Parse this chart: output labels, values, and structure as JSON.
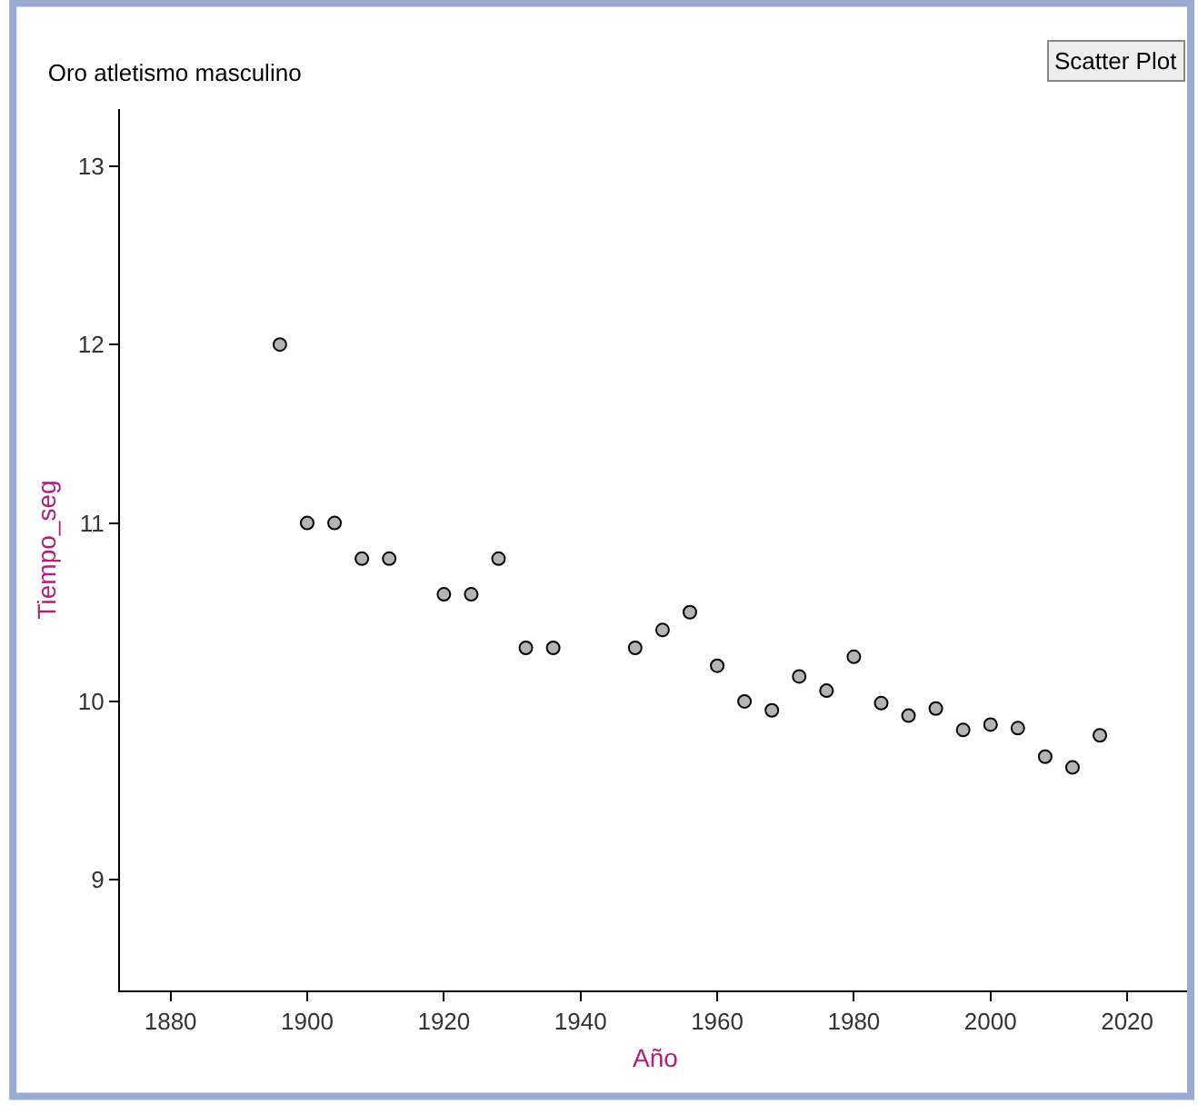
{
  "chart_data": {
    "type": "scatter",
    "title": "Oro atletismo masculino",
    "xlabel": "Año",
    "ylabel": "Tiempo_seg",
    "annotations": [
      "Scatter Plot"
    ],
    "x": [
      1896,
      1900,
      1904,
      1908,
      1912,
      1920,
      1924,
      1928,
      1932,
      1936,
      1948,
      1952,
      1956,
      1960,
      1964,
      1968,
      1972,
      1976,
      1980,
      1984,
      1988,
      1992,
      1996,
      2000,
      2004,
      2008,
      2012,
      2016
    ],
    "values": [
      12.0,
      11.0,
      11.0,
      10.8,
      10.8,
      10.6,
      10.6,
      10.8,
      10.3,
      10.3,
      10.3,
      10.4,
      10.5,
      10.2,
      10.0,
      9.95,
      10.14,
      10.06,
      10.25,
      9.99,
      9.92,
      9.96,
      9.84,
      9.87,
      9.85,
      9.69,
      9.63,
      9.81
    ],
    "color": "#b4b4b4",
    "marker": "circle",
    "grid": false,
    "xlim": [
      1872.6,
      2029.3
    ],
    "xticks": [
      1880,
      1900,
      1920,
      1940,
      1960,
      1980,
      2000,
      2020
    ],
    "ylim": [
      8.38,
      13.32
    ],
    "yticks": [
      9,
      10,
      11,
      12,
      13
    ]
  }
}
